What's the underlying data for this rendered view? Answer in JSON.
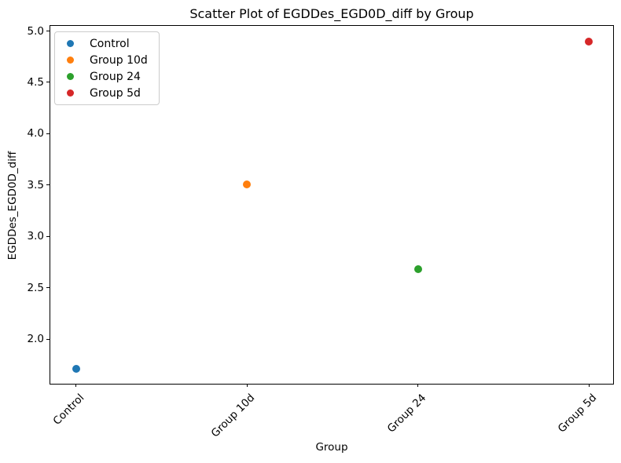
{
  "chart_data": {
    "type": "scatter",
    "title": "Scatter Plot of EGDDes_EGD0D_diff by Group",
    "xlabel": "Group",
    "ylabel": "EGDDes_EGD0D_diff",
    "categories": [
      "Control",
      "Group 10d",
      "Group 24",
      "Group 5d"
    ],
    "series": [
      {
        "name": "Control",
        "color": "#1f77b4",
        "x": "Control",
        "y": 1.71
      },
      {
        "name": "Group 10d",
        "color": "#ff7f0e",
        "x": "Group 10d",
        "y": 3.51
      },
      {
        "name": "Group 24",
        "color": "#2ca02c",
        "x": "Group 24",
        "y": 2.68
      },
      {
        "name": "Group 5d",
        "color": "#d62728",
        "x": "Group 5d",
        "y": 4.9
      }
    ],
    "y_tick_labels": [
      "2.0",
      "2.5",
      "3.0",
      "3.5",
      "4.0",
      "4.5",
      "5.0"
    ],
    "y_tick_values": [
      2.0,
      2.5,
      3.0,
      3.5,
      4.0,
      4.5,
      5.0
    ],
    "ylim": [
      1.55,
      5.05
    ],
    "xlim": [
      -0.15,
      3.15
    ],
    "x_tick_rotation_deg": 45,
    "grid": false,
    "legend": {
      "position": "upper left",
      "entries": [
        "Control",
        "Group 10d",
        "Group 24",
        "Group 5d"
      ]
    }
  },
  "colors": {
    "axis": "#000000",
    "legend_border": "#cccccc",
    "background": "#ffffff"
  }
}
